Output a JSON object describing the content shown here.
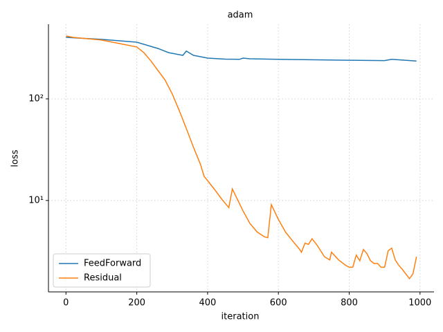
{
  "chart_data": {
    "type": "line",
    "title": "adam",
    "x_label": "iteration",
    "y_label": "loss",
    "log_y": true,
    "grid": true,
    "legend": "lower left",
    "xlim": [
      -49.5,
      1039.5
    ],
    "ylim": [
      1.26,
      543
    ],
    "xticks": [
      0,
      200,
      400,
      600,
      800,
      1000
    ],
    "yticks": [
      {
        "value": 10,
        "label": "10¹"
      },
      {
        "value": 100,
        "label": "10²"
      }
    ],
    "series": [
      {
        "name": "FeedForward",
        "color": "#1f77b4",
        "x": [
          0,
          100,
          200,
          260,
          290,
          330,
          340,
          360,
          400,
          450,
          490,
          500,
          520,
          600,
          800,
          900,
          920,
          990
        ],
        "values": [
          403,
          385,
          361,
          313,
          285,
          268,
          295,
          268,
          252,
          246,
          245,
          252,
          248,
          245,
          240,
          238,
          245,
          236
        ]
      },
      {
        "name": "Residual",
        "color": "#ff7f0e",
        "x": [
          0,
          20,
          100,
          160,
          200,
          220,
          240,
          260,
          280,
          300,
          320,
          340,
          360,
          380,
          390,
          400,
          420,
          440,
          460,
          470,
          480,
          500,
          520,
          540,
          560,
          570,
          580,
          600,
          620,
          640,
          660,
          665,
          675,
          685,
          695,
          710,
          730,
          745,
          750,
          770,
          790,
          800,
          810,
          820,
          830,
          840,
          850,
          860,
          870,
          880,
          890,
          900,
          910,
          920,
          930,
          940,
          950,
          970,
          980,
          990
        ],
        "values": [
          416,
          403,
          379,
          345,
          324,
          285,
          236,
          190,
          153,
          112,
          76.6,
          51,
          33.4,
          22.6,
          17.3,
          15.7,
          12.8,
          10.3,
          8.5,
          13,
          11,
          7.9,
          5.9,
          4.9,
          4.4,
          4.3,
          9.1,
          6.5,
          4.9,
          4.0,
          3.3,
          3.1,
          3.8,
          3.7,
          4.2,
          3.6,
          2.8,
          2.6,
          3.1,
          2.6,
          2.3,
          2.2,
          2.2,
          2.9,
          2.55,
          3.3,
          3.0,
          2.55,
          2.4,
          2.4,
          2.2,
          2.2,
          3.2,
          3.4,
          2.6,
          2.3,
          2.1,
          1.7,
          1.9,
          2.8
        ]
      }
    ]
  }
}
